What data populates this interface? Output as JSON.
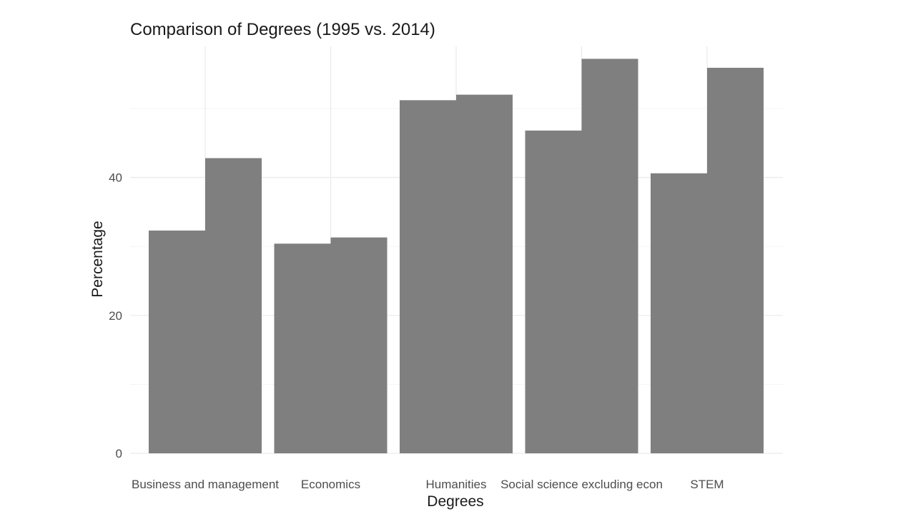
{
  "chart_data": {
    "type": "bar",
    "title": "Comparison of Degrees (1995 vs. 2014)",
    "xlabel": "Degrees",
    "ylabel": "Percentage",
    "categories": [
      "Business and management",
      "Economics",
      "Humanities",
      "Social science excluding econ",
      "STEM"
    ],
    "series": [
      {
        "values": [
          32.3,
          30.4,
          51.2,
          46.8,
          40.6
        ]
      },
      {
        "values": [
          42.8,
          31.3,
          52.0,
          57.2,
          55.9
        ]
      }
    ],
    "ylim": [
      0,
      59
    ],
    "yticks": [
      0,
      20,
      40
    ],
    "grid": true,
    "legend": "none",
    "bar_color": "#7f7f7f"
  }
}
